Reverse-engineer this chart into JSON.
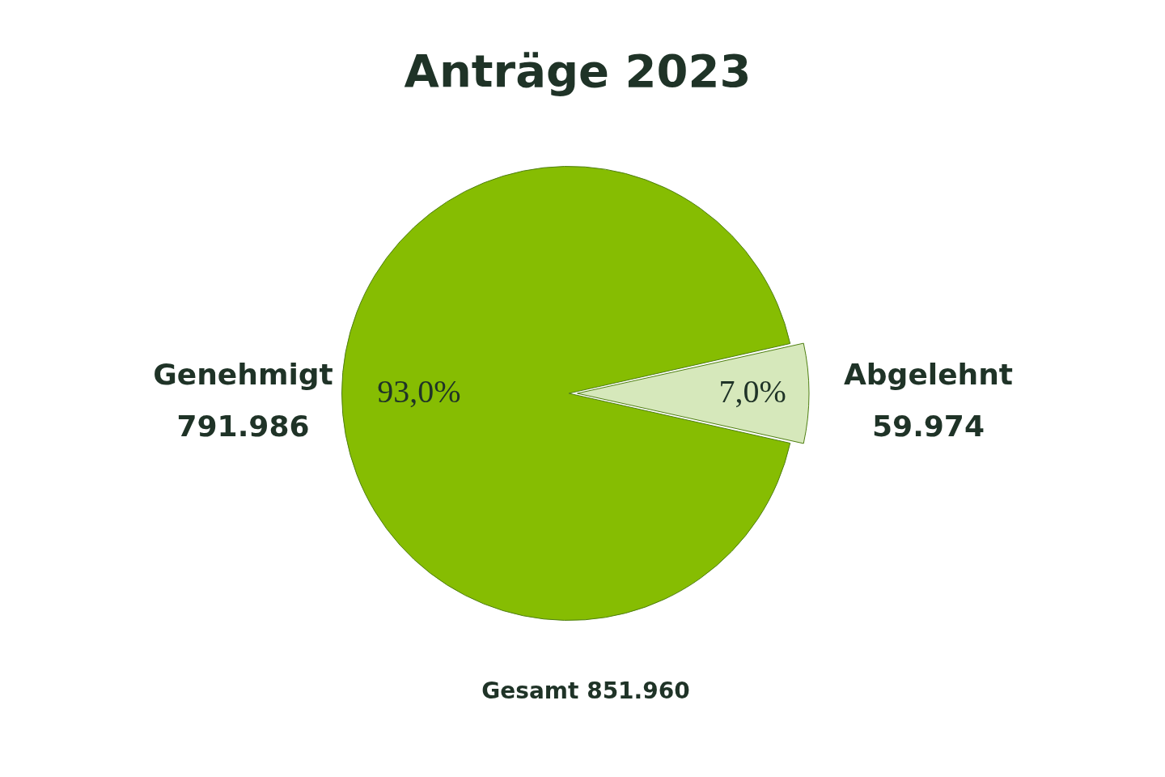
{
  "chart_data": {
    "type": "pie",
    "title": "Anträge 2023",
    "categories": [
      "Genehmigt",
      "Abgelehnt"
    ],
    "values": [
      791986,
      59974
    ],
    "colors": [
      "#86bd02",
      "#d6e8bb"
    ],
    "value_labels": [
      "791.986",
      "59.974"
    ],
    "annotations": [
      {
        "text": "93,0%",
        "x": "Genehmigt"
      },
      {
        "text": "7,0%",
        "x": "Abgelehnt"
      },
      "Gesamt 851.960"
    ],
    "legend": false
  }
}
